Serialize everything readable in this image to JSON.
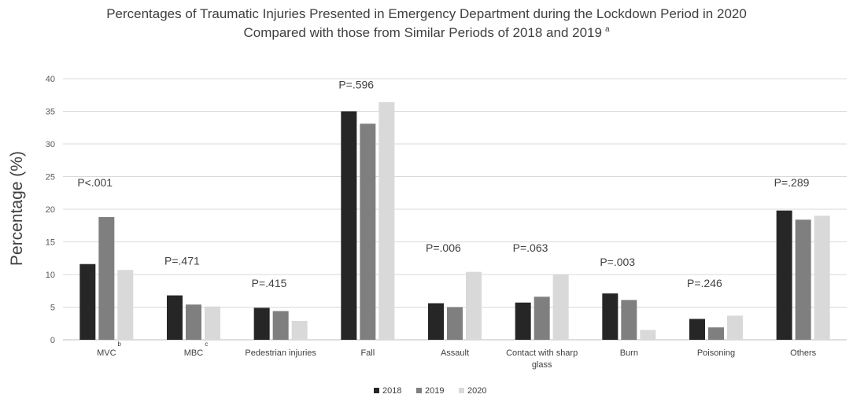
{
  "chart_data": {
    "type": "bar",
    "title": [
      "Percentages of Traumatic Injuries Presented in Emergency Department during the Lockdown Period in 2020",
      "Compared with those from Similar Periods of 2018 and 2019"
    ],
    "title_superscript": "a",
    "ylabel": "Percentage (%)",
    "xlabel": "",
    "ylim": [
      0,
      40
    ],
    "yticks": [
      0,
      5,
      10,
      15,
      20,
      25,
      30,
      35,
      40
    ],
    "grid": true,
    "legend_position": "bottom",
    "categories": [
      {
        "lines": [
          "MVC"
        ],
        "superscript": "b"
      },
      {
        "lines": [
          "MBC"
        ],
        "superscript": "c"
      },
      {
        "lines": [
          "Pedestrian injuries"
        ],
        "superscript": ""
      },
      {
        "lines": [
          "Fall"
        ],
        "superscript": ""
      },
      {
        "lines": [
          "Assault"
        ],
        "superscript": ""
      },
      {
        "lines": [
          "Contact with sharp",
          "glass"
        ],
        "superscript": ""
      },
      {
        "lines": [
          "Burn"
        ],
        "superscript": ""
      },
      {
        "lines": [
          "Poisoning"
        ],
        "superscript": ""
      },
      {
        "lines": [
          "Others"
        ],
        "superscript": ""
      }
    ],
    "series": [
      {
        "name": "2018",
        "color": "#262626",
        "values": [
          11.6,
          6.8,
          4.9,
          35.0,
          5.6,
          5.7,
          7.1,
          3.2,
          19.8
        ]
      },
      {
        "name": "2019",
        "color": "#7f7f7f",
        "values": [
          18.8,
          5.4,
          4.4,
          33.1,
          5.0,
          6.6,
          6.1,
          1.9,
          18.4
        ]
      },
      {
        "name": "2020",
        "color": "#d9d9d9",
        "values": [
          10.7,
          5.1,
          2.9,
          36.4,
          10.4,
          10.0,
          1.5,
          3.7,
          19.0
        ]
      }
    ],
    "annotations": [
      {
        "text": "P<.001",
        "value": 23.5
      },
      {
        "text": "P=.471",
        "value": 11.5
      },
      {
        "text": "P=.415",
        "value": 8.1
      },
      {
        "text": "P=.596",
        "value": 38.5
      },
      {
        "text": "P=.006",
        "value": 13.5
      },
      {
        "text": "P=.063",
        "value": 13.5
      },
      {
        "text": "P=.003",
        "value": 11.3
      },
      {
        "text": "P=.246",
        "value": 8.1
      },
      {
        "text": "P=.289",
        "value": 23.5
      }
    ]
  }
}
